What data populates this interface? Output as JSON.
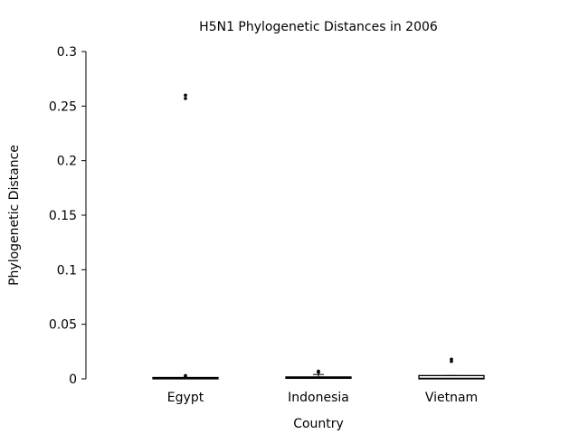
{
  "chart_data": {
    "type": "boxplot",
    "title": "H5N1 Phylogenetic Distances in 2006",
    "xlabel": "Country",
    "ylabel": "Phylogenetic Distance",
    "ylim": [
      0,
      0.3
    ],
    "yticks": [
      "0",
      "0.05",
      "0.1",
      "0.15",
      "0.2",
      "0.25",
      "0.3"
    ],
    "yticks_values": [
      0,
      0.05,
      0.1,
      0.15,
      0.2,
      0.25,
      0.3
    ],
    "categories": [
      "Egypt",
      "Indonesia",
      "Vietnam"
    ],
    "boxes": [
      {
        "category": "Egypt",
        "min": 0.0,
        "q1": 0.0,
        "median": 0.0005,
        "q3": 0.001,
        "max": 0.001,
        "outliers": [
          0.002,
          0.003,
          0.257,
          0.26
        ]
      },
      {
        "category": "Indonesia",
        "min": 0.0,
        "q1": 0.0005,
        "median": 0.001,
        "q3": 0.0015,
        "max": 0.004,
        "outliers": [
          0.006,
          0.007
        ]
      },
      {
        "category": "Vietnam",
        "min": 0.0,
        "q1": 0.0,
        "median": 0.0005,
        "q3": 0.003,
        "max": 0.003,
        "outliers": [
          0.016,
          0.018
        ]
      }
    ],
    "colors": {
      "box_edge": "#000000",
      "box_fill": "#ffffff",
      "points": "#000000"
    },
    "grid": false,
    "legend": "none"
  }
}
